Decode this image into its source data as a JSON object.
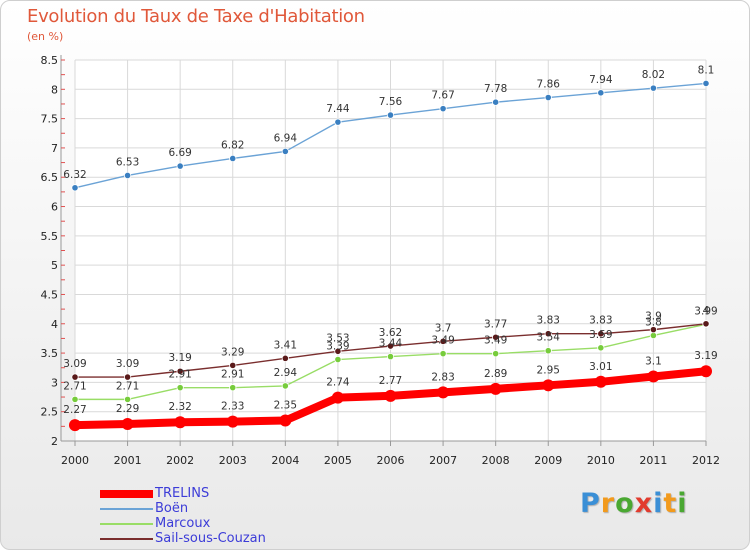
{
  "chart_data": {
    "type": "line",
    "title": "Evolution du Taux de Taxe d'Habitation",
    "subtitle": "(en %)",
    "x": [
      "2000",
      "2001",
      "2002",
      "2003",
      "2004",
      "2005",
      "2006",
      "2007",
      "2008",
      "2009",
      "2010",
      "2011",
      "2012"
    ],
    "ylim": [
      2,
      8.5
    ],
    "yticks": [
      "2",
      "2.5",
      "3",
      "3.5",
      "4",
      "4.5",
      "5",
      "5.5",
      "6",
      "6.5",
      "7",
      "7.5",
      "8",
      "8.5"
    ],
    "grid": true,
    "legend_position": "bottom-left",
    "series": [
      {
        "name": "TRELINS",
        "color": "#ff0000",
        "values": [
          2.27,
          2.29,
          2.32,
          2.33,
          2.35,
          2.74,
          2.77,
          2.83,
          2.89,
          2.95,
          3.01,
          3.1,
          3.19
        ],
        "labels": [
          "2.27",
          "2.29",
          "2.32",
          "2.33",
          "2.35",
          "2.74",
          "2.77",
          "2.83",
          "2.89",
          "2.95",
          "3.01",
          "3.1",
          "3.19"
        ]
      },
      {
        "name": "Boën",
        "color": "#6ba3d6",
        "values": [
          6.32,
          6.53,
          6.69,
          6.82,
          6.94,
          7.44,
          7.56,
          7.67,
          7.78,
          7.86,
          7.94,
          8.02,
          8.1
        ],
        "labels": [
          "6.32",
          "6.53",
          "6.69",
          "6.82",
          "6.94",
          "7.44",
          "7.56",
          "7.67",
          "7.78",
          "7.86",
          "7.94",
          "8.02",
          "8.1"
        ]
      },
      {
        "name": "Marcoux",
        "color": "#99dd66",
        "values": [
          2.71,
          2.71,
          2.91,
          2.91,
          2.94,
          3.39,
          3.44,
          3.49,
          3.49,
          3.54,
          3.59,
          3.8,
          3.99
        ],
        "labels": [
          "2.71",
          "2.71",
          "2.91",
          "2.91",
          "2.94",
          "3.39",
          "3.44",
          "3.49",
          "3.49",
          "3.54",
          "3.59",
          "3.8",
          "3.99"
        ]
      },
      {
        "name": "Sail-sous-Couzan",
        "color": "#7a2e2e",
        "values": [
          3.09,
          3.09,
          3.19,
          3.29,
          3.41,
          3.53,
          3.62,
          3.7,
          3.77,
          3.83,
          3.83,
          3.9,
          4.0
        ],
        "labels": [
          "3.09",
          "3.09",
          "3.19",
          "3.29",
          "3.41",
          "3.53",
          "3.62",
          "3.7",
          "3.77",
          "3.83",
          "3.83",
          "3.9",
          "4"
        ]
      }
    ]
  },
  "logo": {
    "text": "Proxiti",
    "letter_colors": [
      "#3a8fd6",
      "#f29a1c",
      "#4aa832",
      "#e23b2e",
      "#3a8fd6",
      "#f29a1c",
      "#4aa832"
    ]
  }
}
